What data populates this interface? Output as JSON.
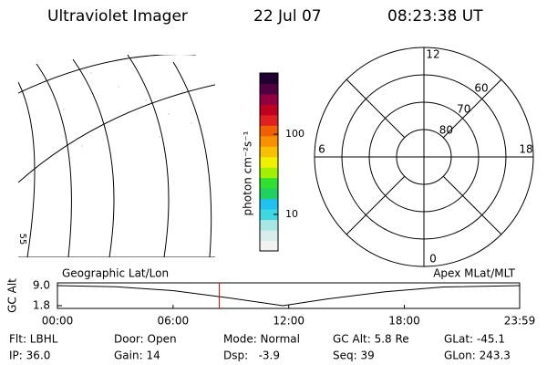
{
  "header": {
    "title": "Ultraviolet Imager",
    "date": "22 Jul 07",
    "time": "08:23:38 UT"
  },
  "map": {
    "lat_label": "55"
  },
  "colorbar": {
    "label": "photon cm⁻²s⁻¹",
    "log": true,
    "lim": [
      3.5,
      580
    ],
    "ticks": [
      10,
      100
    ],
    "colors": [
      "#f2f2f2",
      "#d8ecec",
      "#a8e6e6",
      "#40d8e0",
      "#20c0f0",
      "#20d060",
      "#30e030",
      "#a0f000",
      "#f0f000",
      "#f8c000",
      "#f89000",
      "#f06000",
      "#e02020",
      "#c00020",
      "#900040",
      "#500040",
      "#200030"
    ]
  },
  "polar": {
    "rings": [
      80,
      70,
      60,
      50
    ],
    "ring_labels": [
      60,
      70,
      80
    ],
    "mlt_labels": [
      {
        "value": 12,
        "label": "12"
      },
      {
        "value": 6,
        "label": "6"
      },
      {
        "value": 0,
        "label": "0"
      },
      {
        "value": 18,
        "label": "18"
      }
    ]
  },
  "timeline": {
    "left_label": "Geographic Lat/Lon",
    "right_label": "Apex MLat/MLT",
    "ylabel": "GC Alt",
    "ylim": [
      1.8,
      9.0
    ],
    "yticks": [
      {
        "value": 9,
        "label": "9.0"
      },
      {
        "value": 1.8,
        "label": "1.8"
      }
    ],
    "xlim": [
      0,
      23.983
    ],
    "xticks": [
      {
        "value": 0,
        "label": "00:00"
      },
      {
        "value": 6,
        "label": "06:00"
      },
      {
        "value": 12,
        "label": "12:00"
      },
      {
        "value": 18,
        "label": "18:00"
      },
      {
        "value": 23.983,
        "label": "23:59"
      }
    ],
    "x": [
      0,
      3,
      6,
      9,
      11.7,
      14,
      17,
      20,
      23.983
    ],
    "values": [
      9.0,
      8.6,
      7.2,
      4.5,
      1.8,
      4.2,
      6.8,
      8.5,
      9.0
    ],
    "current_time": 8.394,
    "current_color": "#e00000"
  },
  "footer": [
    [
      "Flt: LBHL",
      "Door: Open",
      "Mode: Normal",
      "GC Alt: 5.8 Re",
      "GLat: -45.1"
    ],
    [
      "IP: 36.0",
      "Gain: 14",
      "Dsp:   -3.9",
      "Seq: 39",
      "GLon: 243.3"
    ]
  ]
}
